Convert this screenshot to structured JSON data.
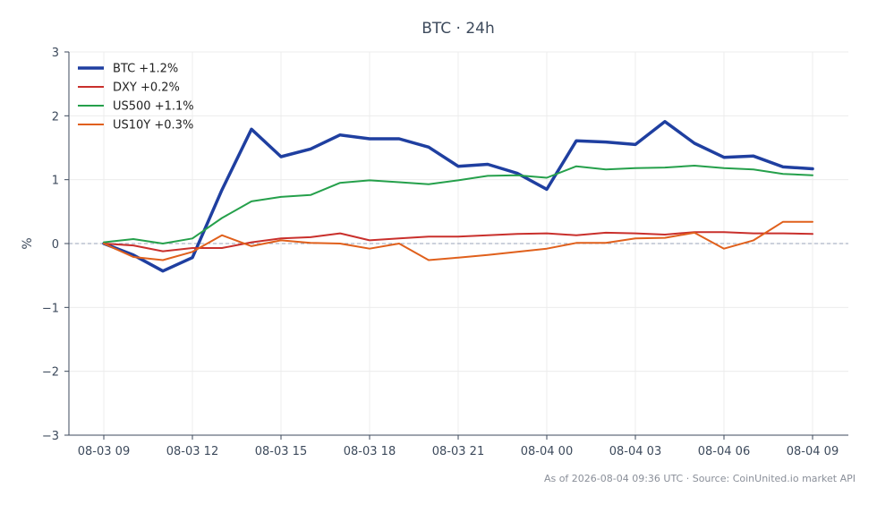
{
  "chart_data": {
    "type": "line",
    "title": "BTC · 24h",
    "ylabel": "%",
    "xlabel": "",
    "ylim": [
      -3,
      3
    ],
    "yticks": [
      3,
      2,
      1,
      0,
      -1,
      -2,
      -3
    ],
    "ytick_labels": [
      "3",
      "2",
      "1",
      "0",
      "−1",
      "−2",
      "−3"
    ],
    "xticks": [
      "08-03 09",
      "08-03 12",
      "08-03 15",
      "08-03 18",
      "08-03 21",
      "08-04 00",
      "08-04 03",
      "08-04 06",
      "08-04 09"
    ],
    "x": [
      "08-03 09:00",
      "08-03 10:00",
      "08-03 11:00",
      "08-03 12:00",
      "08-03 13:00",
      "08-03 14:00",
      "08-03 15:00",
      "08-03 16:00",
      "08-03 17:00",
      "08-03 18:00",
      "08-03 19:00",
      "08-03 20:00",
      "08-03 21:00",
      "08-03 22:00",
      "08-03 23:00",
      "08-04 00:00",
      "08-04 01:00",
      "08-04 02:00",
      "08-04 03:00",
      "08-04 04:00",
      "08-04 05:00",
      "08-04 06:00",
      "08-04 07:00",
      "08-04 08:00",
      "08-04 09:00"
    ],
    "grid": true,
    "zero_line": "dashed",
    "legend_position": "top-left",
    "series": [
      {
        "name": "BTC +1.2%",
        "color": "#1f3fa0",
        "width": "thick",
        "values": [
          0.0,
          -0.18,
          -0.43,
          -0.22,
          0.84,
          1.79,
          1.36,
          1.48,
          1.7,
          1.64,
          1.64,
          1.51,
          1.21,
          1.24,
          1.1,
          0.85,
          1.61,
          1.59,
          1.55,
          1.91,
          1.57,
          1.35,
          1.37,
          1.2,
          1.17
        ]
      },
      {
        "name": "DXY +0.2%",
        "color": "#c9302c",
        "width": "normal",
        "values": [
          0.0,
          -0.03,
          -0.12,
          -0.07,
          -0.07,
          0.02,
          0.08,
          0.1,
          0.16,
          0.05,
          0.08,
          0.11,
          0.11,
          0.13,
          0.15,
          0.16,
          0.13,
          0.17,
          0.16,
          0.14,
          0.18,
          0.18,
          0.16,
          0.16,
          0.15
        ]
      },
      {
        "name": "US500 +1.1%",
        "color": "#25a04b",
        "width": "normal",
        "values": [
          0.02,
          0.07,
          0.0,
          0.08,
          0.4,
          0.66,
          0.73,
          0.76,
          0.95,
          0.99,
          0.96,
          0.93,
          0.99,
          1.06,
          1.07,
          1.03,
          1.21,
          1.16,
          1.18,
          1.19,
          1.22,
          1.18,
          1.16,
          1.09,
          1.07
        ]
      },
      {
        "name": "US10Y +0.3%",
        "color": "#e0601c",
        "width": "normal",
        "values": [
          0.0,
          -0.21,
          -0.26,
          -0.13,
          0.13,
          -0.04,
          0.05,
          0.01,
          0.0,
          -0.08,
          0.0,
          -0.26,
          -0.22,
          -0.18,
          -0.13,
          -0.08,
          0.01,
          0.01,
          0.08,
          0.09,
          0.17,
          -0.08,
          0.05,
          0.34,
          0.34
        ]
      }
    ]
  },
  "footer": "As of 2026-08-04 09:36 UTC · Source: CoinUnited.io market API"
}
